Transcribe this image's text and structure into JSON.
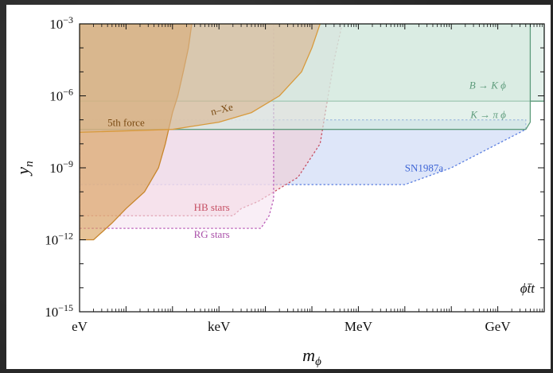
{
  "chart_data": {
    "type": "area",
    "xlabel": "m",
    "xlabel_sub": "ϕ",
    "ylabel": "y",
    "ylabel_sub": "n",
    "x_scale": "log",
    "y_scale": "log",
    "xlim_eV": [
      1,
      10000000000
    ],
    "ylim": [
      1e-15,
      0.001
    ],
    "x_ticks": [
      {
        "value_eV": 1,
        "label": "eV"
      },
      {
        "value_eV": 1000,
        "label": "keV"
      },
      {
        "value_eV": 1000000,
        "label": "MeV"
      },
      {
        "value_eV": 1000000000,
        "label": "GeV"
      }
    ],
    "y_ticks": [
      {
        "value": 0.001,
        "base": "10",
        "exp": "−3"
      },
      {
        "value": 1e-06,
        "base": "10",
        "exp": "−6"
      },
      {
        "value": 1e-09,
        "base": "10",
        "exp": "−9"
      },
      {
        "value": 1e-12,
        "base": "10",
        "exp": "−12"
      },
      {
        "value": 1e-15,
        "base": "10",
        "exp": "−15"
      }
    ],
    "annotation": "ϕt̄t",
    "grid": false,
    "regions": [
      {
        "name": "SN1987a",
        "label": "SN1987a",
        "fill": "#c9d6f5",
        "stroke": "#5b7fe0",
        "dashed": true,
        "label_color": "#3f66d6",
        "points": [
          [
            1,
            1e-07
          ],
          [
            4000000000,
            1e-07
          ],
          [
            4000000000,
            4e-08
          ],
          [
            100000000,
            1e-09
          ],
          [
            10000000,
            2e-10
          ],
          [
            1,
            2e-10
          ]
        ]
      },
      {
        "name": "HB stars",
        "label": "HB stars",
        "fill": "#f0cdd5",
        "stroke": "#c64f63",
        "dashed": true,
        "label_color": "#c64f63",
        "points": [
          [
            1,
            0.001
          ],
          [
            450000,
            0.001
          ],
          [
            300000,
            3e-05
          ],
          [
            150000,
            1e-08
          ],
          [
            50000,
            4e-10
          ],
          [
            7000,
            4e-11
          ],
          [
            3000,
            2e-11
          ],
          [
            2000,
            1e-11
          ],
          [
            1,
            1e-11
          ]
        ]
      },
      {
        "name": "RG stars",
        "label": "RG stars",
        "fill": "#f6e3f1",
        "stroke": "#bb5eb8",
        "dashed": true,
        "label_color": "#a94fa8",
        "points": [
          [
            1,
            0.001
          ],
          [
            15000,
            0.001
          ],
          [
            15000,
            5e-11
          ],
          [
            12000,
            1e-11
          ],
          [
            8000,
            3e-12
          ],
          [
            1,
            3e-12
          ]
        ]
      },
      {
        "name": "B to K phi",
        "label": "B → K ϕ",
        "fill": "#d4e9de",
        "stroke": "#5e9c7c",
        "dashed": false,
        "label_color": "#5e9c7c",
        "points": [
          [
            1,
            6e-07
          ],
          [
            1,
            0.001
          ],
          [
            10000000000,
            0.001
          ],
          [
            10000000000,
            6e-07
          ]
        ]
      },
      {
        "name": "K to pi phi",
        "label": "K → π ϕ",
        "fill": "#d4e9de",
        "stroke": "#5e9c7c",
        "dashed": false,
        "label_color": "#5e9c7c",
        "points": [
          [
            1,
            4e-08
          ],
          [
            1,
            0.001
          ],
          [
            5000000000,
            0.001
          ],
          [
            5000000000,
            8e-08
          ],
          [
            4000000000,
            4e-08
          ]
        ]
      },
      {
        "name": "5th force",
        "label": "5th force",
        "fill": "#d8a058",
        "stroke": "#c8862c",
        "dashed": false,
        "label_color": "#7a4a12",
        "points": [
          [
            1,
            1e-12
          ],
          [
            2,
            1e-12
          ],
          [
            5,
            5e-12
          ],
          [
            10,
            2e-11
          ],
          [
            25,
            1e-10
          ],
          [
            50,
            1e-09
          ],
          [
            70,
            1e-08
          ],
          [
            100,
            2e-07
          ],
          [
            130,
            1e-06
          ],
          [
            170,
            1e-05
          ],
          [
            220,
            0.0001
          ],
          [
            260,
            0.001
          ],
          [
            1,
            0.001
          ]
        ]
      },
      {
        "name": "n-Xe",
        "label": "n–Xe",
        "fill": "#d9b48f",
        "stroke": "#d89a3c",
        "dashed": false,
        "label_color": "#7a4a12",
        "points": [
          [
            1,
            3e-08
          ],
          [
            100,
            4e-08
          ],
          [
            1000,
            8e-08
          ],
          [
            5000,
            2e-07
          ],
          [
            20000,
            1e-06
          ],
          [
            60000,
            1e-05
          ],
          [
            100000,
            0.0001
          ],
          [
            150000,
            0.001
          ],
          [
            1,
            0.001
          ]
        ]
      }
    ]
  }
}
